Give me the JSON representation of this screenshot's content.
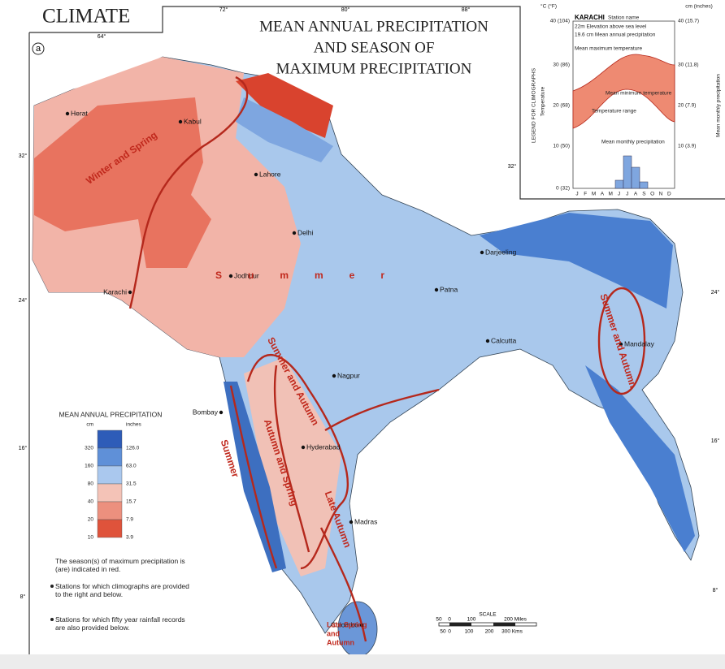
{
  "header": {
    "title": "CLIMATE",
    "panel": "a",
    "map_title": [
      "MEAN ANNUAL PRECIPITATION",
      "AND SEASON OF",
      "MAXIMUM PRECIPITATION"
    ]
  },
  "coordinates": {
    "top": [
      "72°",
      "80°",
      "88°"
    ],
    "inner_top": "64°",
    "left": [
      "32°",
      "24°",
      "16°",
      "8°"
    ],
    "right": [
      "32°",
      "24°",
      "16°",
      "8°"
    ]
  },
  "climograph_legend": {
    "heading": "LEGEND FOR CLIMOGRAPHS",
    "left_axis_title": "Temperature",
    "right_axis_title": "Mean monthly precipitation",
    "left_unit": "°C (°F)",
    "right_unit": "cm (inches)",
    "left_ticks": [
      "40 (104)",
      "30 (86)",
      "20 (68)",
      "10 (50)",
      "0 (32)"
    ],
    "right_ticks": [
      "40 (15.7)",
      "30 (11.8)",
      "20 (7.9)",
      "10 (3.9)"
    ],
    "station": "KARACHI",
    "station_label": "Station name",
    "elevation": "22m Elevation above sea level",
    "precipitation": "19.6 cm Mean annual precipitation",
    "annotations": [
      "Mean maximum temperature",
      "Mean minimum temperature",
      "Temperature range",
      "Mean monthly precipitation"
    ],
    "months": [
      "J",
      "F",
      "M",
      "A",
      "M",
      "J",
      "J",
      "A",
      "S",
      "O",
      "N",
      "D"
    ]
  },
  "precipitation_legend": {
    "title": "MEAN ANNUAL PRECIPITATION",
    "cm": "cm",
    "inches": "inches",
    "classes": [
      {
        "cm": "320",
        "inches": "126.0",
        "color": "#2e5cb8"
      },
      {
        "cm": "160",
        "inches": "63.0",
        "color": "#5f90d8"
      },
      {
        "cm": "80",
        "inches": "31.5",
        "color": "#aac8ee"
      },
      {
        "cm": "40",
        "inches": "15.7",
        "color": "#f4c3b7"
      },
      {
        "cm": "20",
        "inches": "7.9",
        "color": "#ec907e"
      },
      {
        "cm": "10",
        "inches": "3.9",
        "color": "#df533b"
      }
    ]
  },
  "notes": [
    "The season(s) of maximum precipitation is (are) indicated in red.",
    "Stations for which climographs are provided to the right and below.",
    "Stations for which fifty year rainfall records are also provided below."
  ],
  "cities": [
    "Herat",
    "Kabul",
    "Lahore",
    "Delhi",
    "Jodhpur",
    "Karachi",
    "Patna",
    "Darjeeling",
    "Calcutta",
    "Mandalay",
    "Nagpur",
    "Bombay",
    "Hyderabad",
    "Madras",
    "Colombo"
  ],
  "seasons": [
    {
      "lines": [
        "Winter and Spring"
      ]
    },
    {
      "lines": [
        "Summer"
      ]
    },
    {
      "lines": [
        "Summer and Autumn"
      ]
    },
    {
      "lines": [
        "Autumn and Spring"
      ]
    },
    {
      "lines": [
        "Late Autumn"
      ]
    },
    {
      "lines": [
        "Summer"
      ]
    },
    {
      "lines": [
        "Summer and Autumn"
      ]
    },
    {
      "lines": [
        "Late Spring",
        "and",
        "Autumn"
      ]
    }
  ],
  "scale": {
    "title": "SCALE",
    "miles": [
      "50",
      "0",
      "100",
      "200 Miles"
    ],
    "kms": [
      "50",
      "0",
      "100",
      "200",
      "300 Kms"
    ]
  }
}
